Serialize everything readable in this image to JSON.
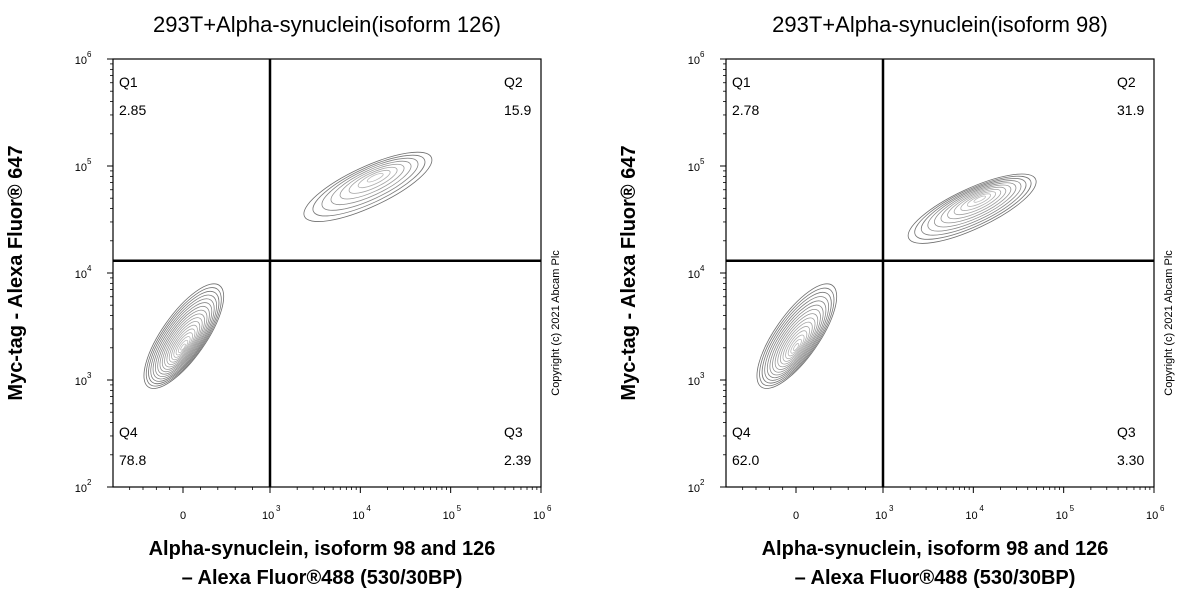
{
  "colors": {
    "axis": "#000000",
    "contour": "#555555",
    "gate": "#000000",
    "background": "#ffffff"
  },
  "copyright": "Copyright (c) 2021 Abcam Plc",
  "chart_data": [
    {
      "type": "scatter",
      "title": "293T+Alpha-synuclein(isoform 126)",
      "ylabel": "Myc-tag - Alexa Fluor® 647",
      "xlabel_line1": "Alpha-synuclein, isoform 98 and 126",
      "xlabel_line2": "– Alexa Fluor®488 (530/30BP)",
      "x_ticks": [
        "0",
        "10",
        "10",
        "10",
        "10"
      ],
      "x_tick_exps": [
        "",
        "3",
        "4",
        "5",
        "6"
      ],
      "y_ticks": [
        "10",
        "10",
        "10",
        "10",
        "10"
      ],
      "y_tick_exps": [
        "2",
        "3",
        "4",
        "5",
        "6"
      ],
      "gate": {
        "x": 1000,
        "y": 13000
      },
      "quadrants": [
        {
          "name": "Q1",
          "value": "2.85"
        },
        {
          "name": "Q2",
          "value": "15.9"
        },
        {
          "name": "Q3",
          "value": "2.39"
        },
        {
          "name": "Q4",
          "value": "78.8"
        }
      ],
      "populations": [
        {
          "x": 0,
          "y": 2000,
          "weight": 78.8
        },
        {
          "x": 15000,
          "y": 80000,
          "weight": 15.9
        }
      ]
    },
    {
      "type": "scatter",
      "title": "293T+Alpha-synuclein(isoform 98)",
      "ylabel": "Myc-tag - Alexa Fluor® 647",
      "xlabel_line1": "Alpha-synuclein, isoform 98 and 126",
      "xlabel_line2": "– Alexa Fluor®488 (530/30BP)",
      "x_ticks": [
        "0",
        "10",
        "10",
        "10",
        "10"
      ],
      "x_tick_exps": [
        "",
        "3",
        "4",
        "5",
        "6"
      ],
      "y_ticks": [
        "10",
        "10",
        "10",
        "10",
        "10"
      ],
      "y_tick_exps": [
        "2",
        "3",
        "4",
        "5",
        "6"
      ],
      "gate": {
        "x": 1000,
        "y": 13000
      },
      "quadrants": [
        {
          "name": "Q1",
          "value": "2.78"
        },
        {
          "name": "Q2",
          "value": "31.9"
        },
        {
          "name": "Q3",
          "value": "3.30"
        },
        {
          "name": "Q4",
          "value": "62.0"
        }
      ],
      "populations": [
        {
          "x": 0,
          "y": 2000,
          "weight": 62.0
        },
        {
          "x": 12000,
          "y": 50000,
          "weight": 31.9
        }
      ]
    }
  ]
}
